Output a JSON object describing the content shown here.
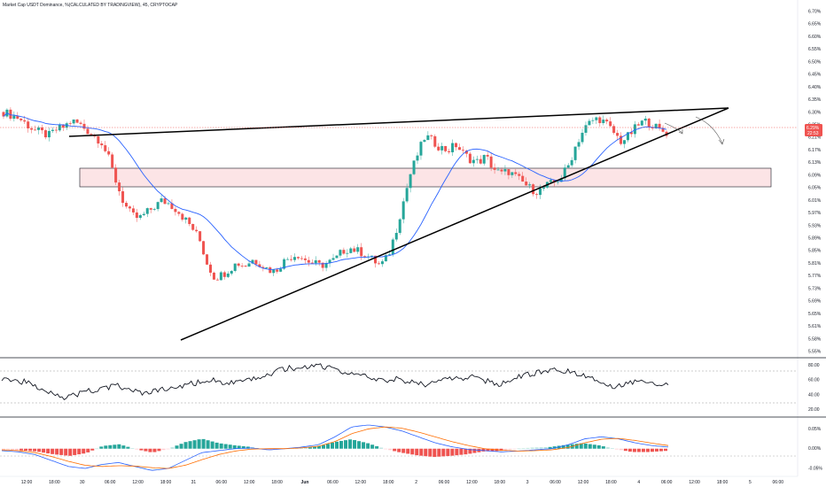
{
  "chart_title": "Market Cap USDT Dominance, %(CALCULATED BY TRADINGVIEW), 45, CRYPTOCAP",
  "colors": {
    "up": "#26a69a",
    "down": "#ef5350",
    "ma": "#2962ff",
    "rsi": "#131722",
    "macd_line": "#2962ff",
    "signal_line": "#ff6d00",
    "zone_fill": "#fce4e6",
    "zone_stroke": "#131722",
    "price_tag": "#ef5350"
  },
  "price_axis": {
    "ticks": [
      "6.70%",
      "6.65%",
      "6.60%",
      "6.55%",
      "6.50%",
      "6.45%",
      "6.40%",
      "6.35%",
      "6.30%",
      "6.25%",
      "6.21%",
      "6.17%",
      "6.13%",
      "6.09%",
      "6.05%",
      "6.01%",
      "5.97%",
      "5.93%",
      "5.89%",
      "5.85%",
      "5.81%",
      "5.77%",
      "5.73%",
      "5.69%",
      "5.65%",
      "5.61%",
      "5.58%",
      "5.55%"
    ],
    "current_tag": "6.29%",
    "countdown": "22:53"
  },
  "rsi_axis": {
    "ticks": [
      "80.00",
      "60.00",
      "40.00",
      "20.00"
    ]
  },
  "macd_axis": {
    "ticks": [
      "0.05%",
      "0.00%",
      "-0.05%"
    ]
  },
  "time_axis": {
    "labels": [
      "12:00",
      "18:00",
      "30",
      "06:00",
      "12:00",
      "18:00",
      "31",
      "06:00",
      "12:00",
      "18:00",
      "Jun",
      "06:00",
      "12:00",
      "18:00",
      "2",
      "06:00",
      "12:00",
      "18:00",
      "3",
      "06:00",
      "12:00",
      "18:00",
      "4",
      "06:00",
      "12:00",
      "18:00",
      "5",
      "06:00"
    ]
  },
  "chart_data": {
    "type": "candlestick",
    "title": "Market Cap USDT Dominance, %(CALCULATED BY TRADINGVIEW), 45, CRYPTOCAP",
    "ylim": [
      5.55,
      6.7
    ],
    "close_path": [
      6.36,
      6.35,
      6.34,
      6.32,
      6.3,
      6.29,
      6.28,
      6.3,
      6.31,
      6.33,
      6.32,
      6.3,
      6.28,
      6.26,
      6.2,
      6.12,
      6.05,
      6.01,
      6.0,
      6.02,
      6.04,
      6.06,
      6.05,
      6.03,
      6.0,
      5.97,
      5.93,
      5.85,
      5.8,
      5.81,
      5.83,
      5.85,
      5.84,
      5.86,
      5.85,
      5.83,
      5.82,
      5.85,
      5.87,
      5.88,
      5.86,
      5.85,
      5.84,
      5.85,
      5.86,
      5.89,
      5.9,
      5.89,
      5.88,
      5.86,
      5.84,
      5.87,
      5.95,
      6.05,
      6.15,
      6.22,
      6.28,
      6.26,
      6.24,
      6.23,
      6.25,
      6.22,
      6.2,
      6.19,
      6.21,
      6.17,
      6.15,
      6.16,
      6.14,
      6.12,
      6.1,
      6.09,
      6.11,
      6.12,
      6.14,
      6.18,
      6.25,
      6.3,
      6.33,
      6.34,
      6.32,
      6.29,
      6.26,
      6.28,
      6.31,
      6.33,
      6.32,
      6.3,
      6.29
    ],
    "resistance_line": {
      "from": [
        "29 18:00",
        6.26
      ],
      "to": [
        "4 18:00",
        6.35
      ]
    },
    "support_line": {
      "from": [
        "31 00:00",
        5.58
      ],
      "to": [
        "4 18:00",
        6.35
      ]
    },
    "zone": {
      "low": 6.1,
      "high": 6.14
    },
    "rsi_path": [
      63,
      60,
      58,
      52,
      48,
      42,
      36,
      40,
      45,
      46,
      50,
      52,
      47,
      42,
      44,
      46,
      48,
      52,
      55,
      58,
      60,
      57,
      55,
      58,
      62,
      66,
      72,
      76,
      74,
      78,
      80,
      76,
      72,
      68,
      66,
      62,
      58,
      62,
      60,
      56,
      54,
      58,
      60,
      62,
      64,
      62,
      58,
      54,
      60,
      64,
      68,
      72,
      74,
      72,
      70,
      68,
      62,
      54,
      52,
      56,
      58,
      60,
      55,
      52
    ],
    "rsi_range": [
      20,
      80
    ],
    "macd_range": [
      -0.05,
      0.05
    ],
    "current_value": 6.29
  }
}
